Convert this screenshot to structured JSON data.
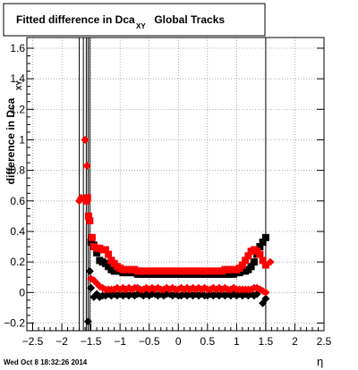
{
  "chart_data": {
    "type": "scatter",
    "title": "Fitted difference in Dca",
    "title_subscript": "XY",
    "title_suffix": "Global Tracks",
    "xlabel": "η",
    "ylabel": "difference in Dca",
    "ylabel_subscript": "XY",
    "xlim": [
      -2.6,
      2.5
    ],
    "ylim": [
      -0.25,
      1.67
    ],
    "x_ticks": [
      -2.5,
      -2,
      -1.5,
      -1,
      -0.5,
      0,
      0.5,
      1,
      1.5,
      2,
      2.5
    ],
    "y_ticks": [
      -0.2,
      0,
      0.2,
      0.4,
      0.6,
      0.8,
      1,
      1.2,
      1.4,
      1.6
    ],
    "grid": true,
    "vertical_lines": [
      -1.7,
      -1.63,
      -1.58,
      -1.55,
      -1.52,
      1.5
    ],
    "footer_text": "Wed Oct  8 18:32:26 2014",
    "series": [
      {
        "marker": "square",
        "color": "#000000",
        "x": [
          -1.5,
          -1.45,
          -1.4,
          -1.35,
          -1.3,
          -1.25,
          -1.2,
          -1.15,
          -1.1,
          -1.05,
          -1.0,
          -0.95,
          -0.9,
          -0.85,
          -0.8,
          -0.75,
          -0.7,
          -0.65,
          -0.6,
          -0.55,
          -0.5,
          -0.45,
          -0.4,
          -0.35,
          -0.3,
          -0.25,
          -0.2,
          -0.15,
          -0.1,
          -0.05,
          0.0,
          0.05,
          0.1,
          0.15,
          0.2,
          0.25,
          0.3,
          0.35,
          0.4,
          0.45,
          0.5,
          0.55,
          0.6,
          0.65,
          0.7,
          0.75,
          0.8,
          0.85,
          0.9,
          0.95,
          1.0,
          1.05,
          1.1,
          1.15,
          1.2,
          1.25,
          1.3,
          1.35,
          1.4,
          1.45,
          1.5
        ],
        "y": [
          0.33,
          0.31,
          0.26,
          0.21,
          0.2,
          0.19,
          0.17,
          0.15,
          0.14,
          0.14,
          0.14,
          0.13,
          0.13,
          0.13,
          0.13,
          0.13,
          0.12,
          0.12,
          0.12,
          0.12,
          0.12,
          0.12,
          0.12,
          0.12,
          0.12,
          0.12,
          0.12,
          0.12,
          0.12,
          0.12,
          0.12,
          0.12,
          0.12,
          0.12,
          0.12,
          0.12,
          0.12,
          0.12,
          0.12,
          0.12,
          0.12,
          0.12,
          0.12,
          0.12,
          0.12,
          0.12,
          0.12,
          0.12,
          0.12,
          0.12,
          0.13,
          0.13,
          0.14,
          0.14,
          0.15,
          0.17,
          0.2,
          0.25,
          0.3,
          0.33,
          0.36
        ]
      },
      {
        "marker": "square",
        "color": "#ff0000",
        "x": [
          -1.58,
          -1.56,
          -1.54,
          -1.52,
          -1.48,
          -1.45,
          -1.4,
          -1.35,
          -1.3,
          -1.25,
          -1.2,
          -1.15,
          -1.1,
          -1.05,
          -1.0,
          -0.95,
          -0.9,
          -0.85,
          -0.8,
          -0.75,
          -0.7,
          -0.65,
          -0.6,
          -0.55,
          -0.5,
          -0.45,
          -0.4,
          -0.35,
          -0.3,
          -0.25,
          -0.2,
          -0.15,
          -0.1,
          -0.05,
          0.0,
          0.05,
          0.1,
          0.15,
          0.2,
          0.25,
          0.3,
          0.35,
          0.4,
          0.45,
          0.5,
          0.55,
          0.6,
          0.65,
          0.7,
          0.75,
          0.8,
          0.85,
          0.9,
          0.95,
          1.0,
          1.05,
          1.1,
          1.15,
          1.2,
          1.25,
          1.3,
          1.35,
          1.4,
          1.45,
          1.5
        ],
        "y": [
          0.6,
          0.62,
          0.5,
          0.47,
          0.36,
          0.3,
          0.29,
          0.29,
          0.28,
          0.28,
          0.25,
          0.21,
          0.19,
          0.17,
          0.16,
          0.15,
          0.15,
          0.15,
          0.15,
          0.15,
          0.14,
          0.14,
          0.14,
          0.14,
          0.14,
          0.14,
          0.14,
          0.14,
          0.14,
          0.14,
          0.14,
          0.14,
          0.14,
          0.14,
          0.14,
          0.14,
          0.14,
          0.14,
          0.14,
          0.14,
          0.14,
          0.14,
          0.14,
          0.14,
          0.14,
          0.14,
          0.14,
          0.14,
          0.14,
          0.14,
          0.15,
          0.15,
          0.15,
          0.15,
          0.15,
          0.16,
          0.18,
          0.21,
          0.24,
          0.27,
          0.28,
          0.27,
          0.25,
          0.21,
          0.18
        ]
      },
      {
        "marker": "diamond",
        "color": "#000000",
        "x": [
          -1.55,
          -1.52,
          -1.5,
          -1.45,
          -1.4,
          -1.35,
          -1.3,
          -1.25,
          -1.2,
          -1.15,
          -1.1,
          -1.05,
          -1.0,
          -0.95,
          -0.9,
          -0.85,
          -0.8,
          -0.75,
          -0.7,
          -0.65,
          -0.6,
          -0.55,
          -0.5,
          -0.45,
          -0.4,
          -0.35,
          -0.3,
          -0.25,
          -0.2,
          -0.15,
          -0.1,
          -0.05,
          0.0,
          0.05,
          0.1,
          0.15,
          0.2,
          0.25,
          0.3,
          0.35,
          0.4,
          0.45,
          0.5,
          0.55,
          0.6,
          0.65,
          0.7,
          0.75,
          0.8,
          0.85,
          0.9,
          0.95,
          1.0,
          1.05,
          1.1,
          1.15,
          1.2,
          1.25,
          1.3,
          1.35,
          1.4,
          1.45,
          1.5
        ],
        "y": [
          -0.19,
          0.14,
          0.03,
          -0.03,
          -0.01,
          -0.03,
          -0.02,
          -0.02,
          -0.01,
          -0.02,
          -0.01,
          -0.02,
          -0.01,
          -0.02,
          -0.01,
          -0.02,
          -0.01,
          -0.02,
          -0.01,
          -0.01,
          -0.02,
          -0.01,
          -0.02,
          -0.01,
          -0.01,
          -0.02,
          -0.01,
          -0.02,
          -0.01,
          -0.01,
          -0.02,
          -0.01,
          -0.02,
          -0.02,
          -0.01,
          -0.02,
          -0.01,
          -0.02,
          -0.01,
          -0.02,
          -0.01,
          -0.02,
          -0.02,
          -0.01,
          -0.02,
          -0.01,
          -0.02,
          -0.01,
          -0.02,
          -0.01,
          -0.02,
          -0.01,
          -0.02,
          -0.01,
          -0.02,
          -0.01,
          -0.02,
          -0.01,
          -0.02,
          -0.01,
          0.02,
          -0.07,
          -0.04
        ]
      },
      {
        "marker": "diamond",
        "color": "#ff0000",
        "x": [
          -1.7,
          -1.67,
          -1.6,
          -1.57,
          -1.5,
          -1.45,
          -1.4,
          -1.35,
          -1.3,
          -1.25,
          -1.2,
          -1.15,
          -1.1,
          -1.05,
          -1.0,
          -0.95,
          -0.9,
          -0.85,
          -0.8,
          -0.75,
          -0.7,
          -0.65,
          -0.6,
          -0.55,
          -0.5,
          -0.45,
          -0.4,
          -0.35,
          -0.3,
          -0.25,
          -0.2,
          -0.15,
          -0.1,
          -0.05,
          0.0,
          0.05,
          0.1,
          0.15,
          0.2,
          0.25,
          0.3,
          0.35,
          0.4,
          0.45,
          0.5,
          0.55,
          0.6,
          0.65,
          0.7,
          0.75,
          0.8,
          0.85,
          0.9,
          0.95,
          1.0,
          1.05,
          1.1,
          1.15,
          1.2,
          1.25,
          1.3,
          1.35,
          1.4,
          1.45,
          1.5,
          1.58
        ],
        "y": [
          0.6,
          0.62,
          1.0,
          0.83,
          0.09,
          0.08,
          0.06,
          0.04,
          0.03,
          0.02,
          0.02,
          0.02,
          0.02,
          0.03,
          0.02,
          0.03,
          0.02,
          0.03,
          0.02,
          0.03,
          0.03,
          0.02,
          0.02,
          0.03,
          0.02,
          0.03,
          0.02,
          0.03,
          0.02,
          0.02,
          0.03,
          0.02,
          0.03,
          0.02,
          0.02,
          0.03,
          0.02,
          0.03,
          0.02,
          0.03,
          0.02,
          0.03,
          0.02,
          0.03,
          0.02,
          0.02,
          0.03,
          0.02,
          0.03,
          0.02,
          0.03,
          0.02,
          0.02,
          0.03,
          0.02,
          0.02,
          0.02,
          0.02,
          0.02,
          0.02,
          0.03,
          0.03,
          0.02,
          0.01,
          0.0,
          0.2
        ]
      }
    ]
  }
}
